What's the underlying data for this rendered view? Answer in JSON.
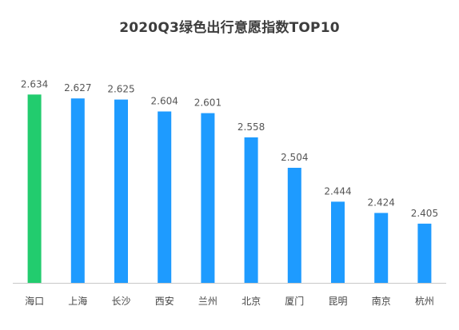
{
  "chart_data": {
    "type": "bar",
    "title": "2020Q3绿色出行意愿指数TOP10",
    "categories": [
      "海口",
      "上海",
      "长沙",
      "西安",
      "兰州",
      "北京",
      "厦门",
      "昆明",
      "南京",
      "杭州"
    ],
    "values": [
      2.634,
      2.627,
      2.625,
      2.604,
      2.601,
      2.558,
      2.504,
      2.444,
      2.424,
      2.405
    ],
    "value_labels": [
      "2.634",
      "2.627",
      "2.625",
      "2.604",
      "2.601",
      "2.558",
      "2.504",
      "2.444",
      "2.424",
      "2.405"
    ],
    "xlabel": "",
    "ylabel": "",
    "ylim": [
      2.3,
      2.65
    ],
    "grid": false,
    "legend": "none",
    "colors": {
      "highlight": "#22cc6e",
      "bar": "#1e9bff",
      "axis": "#c8c8c8",
      "label_text": "#555555",
      "tick_text": "#444444"
    },
    "highlight_index": 0
  }
}
